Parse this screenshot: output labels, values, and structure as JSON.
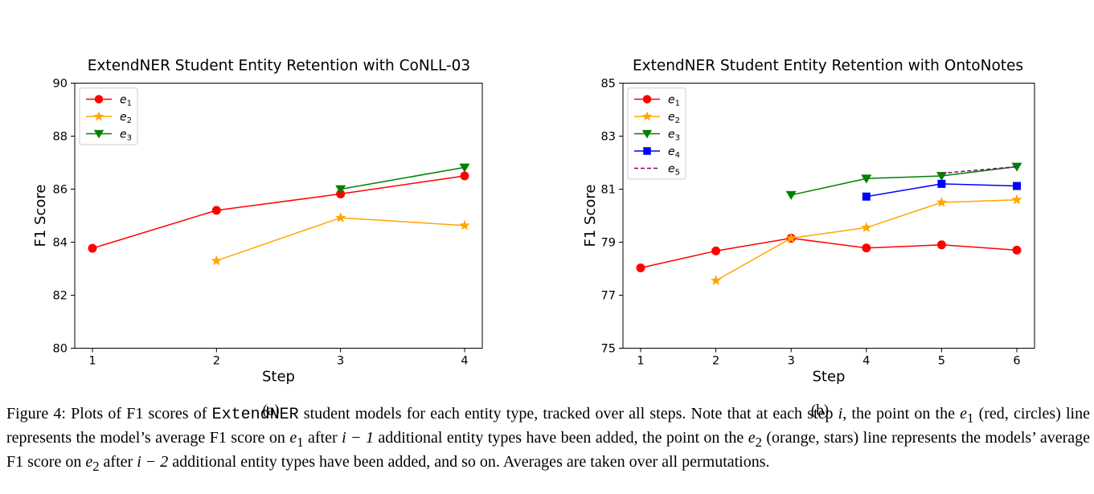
{
  "chart_data": [
    {
      "type": "line",
      "title": "ExtendNER Student Entity Retention with CoNLL-03",
      "xlabel": "Step",
      "ylabel": "F1 Score",
      "xlim": [
        1,
        4
      ],
      "ylim": [
        80,
        90
      ],
      "xticks": [
        1,
        2,
        3,
        4
      ],
      "yticks": [
        80,
        82,
        84,
        86,
        88,
        90
      ],
      "legend": "top-left",
      "grid": false,
      "series": [
        {
          "name": "e1",
          "color": "#ff0000",
          "marker": "circle",
          "dash": false,
          "x": [
            1,
            2,
            3,
            4
          ],
          "y": [
            83.77,
            85.2,
            85.82,
            86.5
          ]
        },
        {
          "name": "e2",
          "color": "#ffa500",
          "marker": "star",
          "dash": false,
          "x": [
            2,
            3,
            4
          ],
          "y": [
            83.3,
            84.92,
            84.63
          ]
        },
        {
          "name": "e3",
          "color": "#008000",
          "marker": "triangle-down",
          "dash": false,
          "x": [
            3,
            4
          ],
          "y": [
            86.0,
            86.82
          ]
        }
      ],
      "sublabel": "(a)"
    },
    {
      "type": "line",
      "title": "ExtendNER Student Entity Retention with OntoNotes",
      "xlabel": "Step",
      "ylabel": "F1 Score",
      "xlim": [
        1,
        6
      ],
      "ylim": [
        75,
        85
      ],
      "xticks": [
        1,
        2,
        3,
        4,
        5,
        6
      ],
      "yticks": [
        75,
        77,
        79,
        81,
        83,
        85
      ],
      "legend": "top-left",
      "grid": false,
      "series": [
        {
          "name": "e1",
          "color": "#ff0000",
          "marker": "circle",
          "dash": false,
          "x": [
            1,
            2,
            3,
            4,
            5,
            6
          ],
          "y": [
            78.03,
            78.67,
            79.15,
            78.78,
            78.9,
            78.7
          ]
        },
        {
          "name": "e2",
          "color": "#ffa500",
          "marker": "star",
          "dash": false,
          "x": [
            2,
            3,
            4,
            5,
            6
          ],
          "y": [
            77.55,
            79.15,
            79.55,
            80.5,
            80.6
          ]
        },
        {
          "name": "e3",
          "color": "#008000",
          "marker": "triangle-down",
          "dash": false,
          "x": [
            3,
            4,
            5,
            6
          ],
          "y": [
            80.78,
            81.4,
            81.5,
            81.85
          ]
        },
        {
          "name": "e4",
          "color": "#0000ff",
          "marker": "square",
          "dash": false,
          "x": [
            4,
            5,
            6
          ],
          "y": [
            80.72,
            81.2,
            81.12
          ]
        },
        {
          "name": "e5",
          "color": "#800080",
          "marker": "none",
          "dash": true,
          "x": [
            5,
            6
          ],
          "y": [
            81.6,
            81.85
          ]
        }
      ],
      "sublabel": "(b)"
    }
  ],
  "caption": {
    "prefix": "Figure 4: Plots of F1 scores of ",
    "model": "ExtendNER",
    "part1": " student models for each entity type, tracked over all steps. Note that at each step ",
    "var_i": "i",
    "part2": ", the point on the ",
    "e1": "e",
    "e1_sub": "1",
    "part3": " (red, circles) line represents the model’s average F1 score on ",
    "part4": " after ",
    "minus1": "i − 1",
    "part5": " additional entity types have been added, the point on the ",
    "e2_sub": "2",
    "part6": " (orange, stars) line represents the models’ average F1 score on ",
    "part7": " after ",
    "minus2": "i − 2",
    "part8": " additional entity types have been added, and so on. Averages are taken over all permutations."
  }
}
